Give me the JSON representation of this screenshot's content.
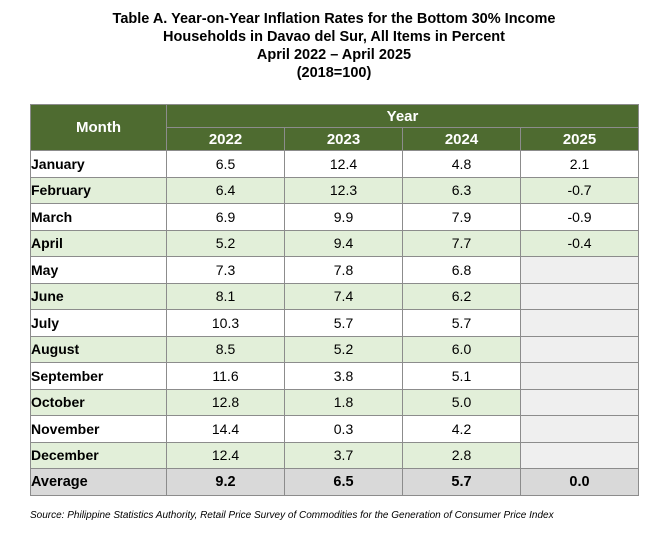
{
  "title": {
    "line1": "Table A. Year-on-Year Inflation Rates for the Bottom 30% Income",
    "line2": "Households in Davao del Sur, All Items in Percent",
    "line3": "April 2022 – April 2025",
    "line4": "(2018=100)"
  },
  "table": {
    "month_header": "Month",
    "year_header": "Year",
    "years": [
      "2022",
      "2023",
      "2024",
      "2025"
    ],
    "rows": [
      {
        "month": "January",
        "values": [
          "6.5",
          "12.4",
          "4.8",
          "2.1"
        ]
      },
      {
        "month": "February",
        "values": [
          "6.4",
          "12.3",
          "6.3",
          "-0.7"
        ]
      },
      {
        "month": "March",
        "values": [
          "6.9",
          "9.9",
          "7.9",
          "-0.9"
        ]
      },
      {
        "month": "April",
        "values": [
          "5.2",
          "9.4",
          "7.7",
          "-0.4"
        ]
      },
      {
        "month": "May",
        "values": [
          "7.3",
          "7.8",
          "6.8",
          ""
        ]
      },
      {
        "month": "June",
        "values": [
          "8.1",
          "7.4",
          "6.2",
          ""
        ]
      },
      {
        "month": "July",
        "values": [
          "10.3",
          "5.7",
          "5.7",
          ""
        ]
      },
      {
        "month": "August",
        "values": [
          "8.5",
          "5.2",
          "6.0",
          ""
        ]
      },
      {
        "month": "September",
        "values": [
          "11.6",
          "3.8",
          "5.1",
          ""
        ]
      },
      {
        "month": "October",
        "values": [
          "12.8",
          "1.8",
          "5.0",
          ""
        ]
      },
      {
        "month": "November",
        "values": [
          "14.4",
          "0.3",
          "4.2",
          ""
        ]
      },
      {
        "month": "December",
        "values": [
          "12.4",
          "3.7",
          "2.8",
          ""
        ]
      }
    ],
    "average": {
      "label": "Average",
      "values": [
        "9.2",
        "6.5",
        "5.7",
        "0.0"
      ]
    }
  },
  "colors": {
    "header_green": "#4e6b30",
    "row_green": "#e2efd9",
    "average_gray": "#d9d9d9",
    "empty_gray": "#efefef"
  },
  "source": "Source: Philippine Statistics Authority, Retail Price Survey of Commodities for the Generation of Consumer Price Index"
}
